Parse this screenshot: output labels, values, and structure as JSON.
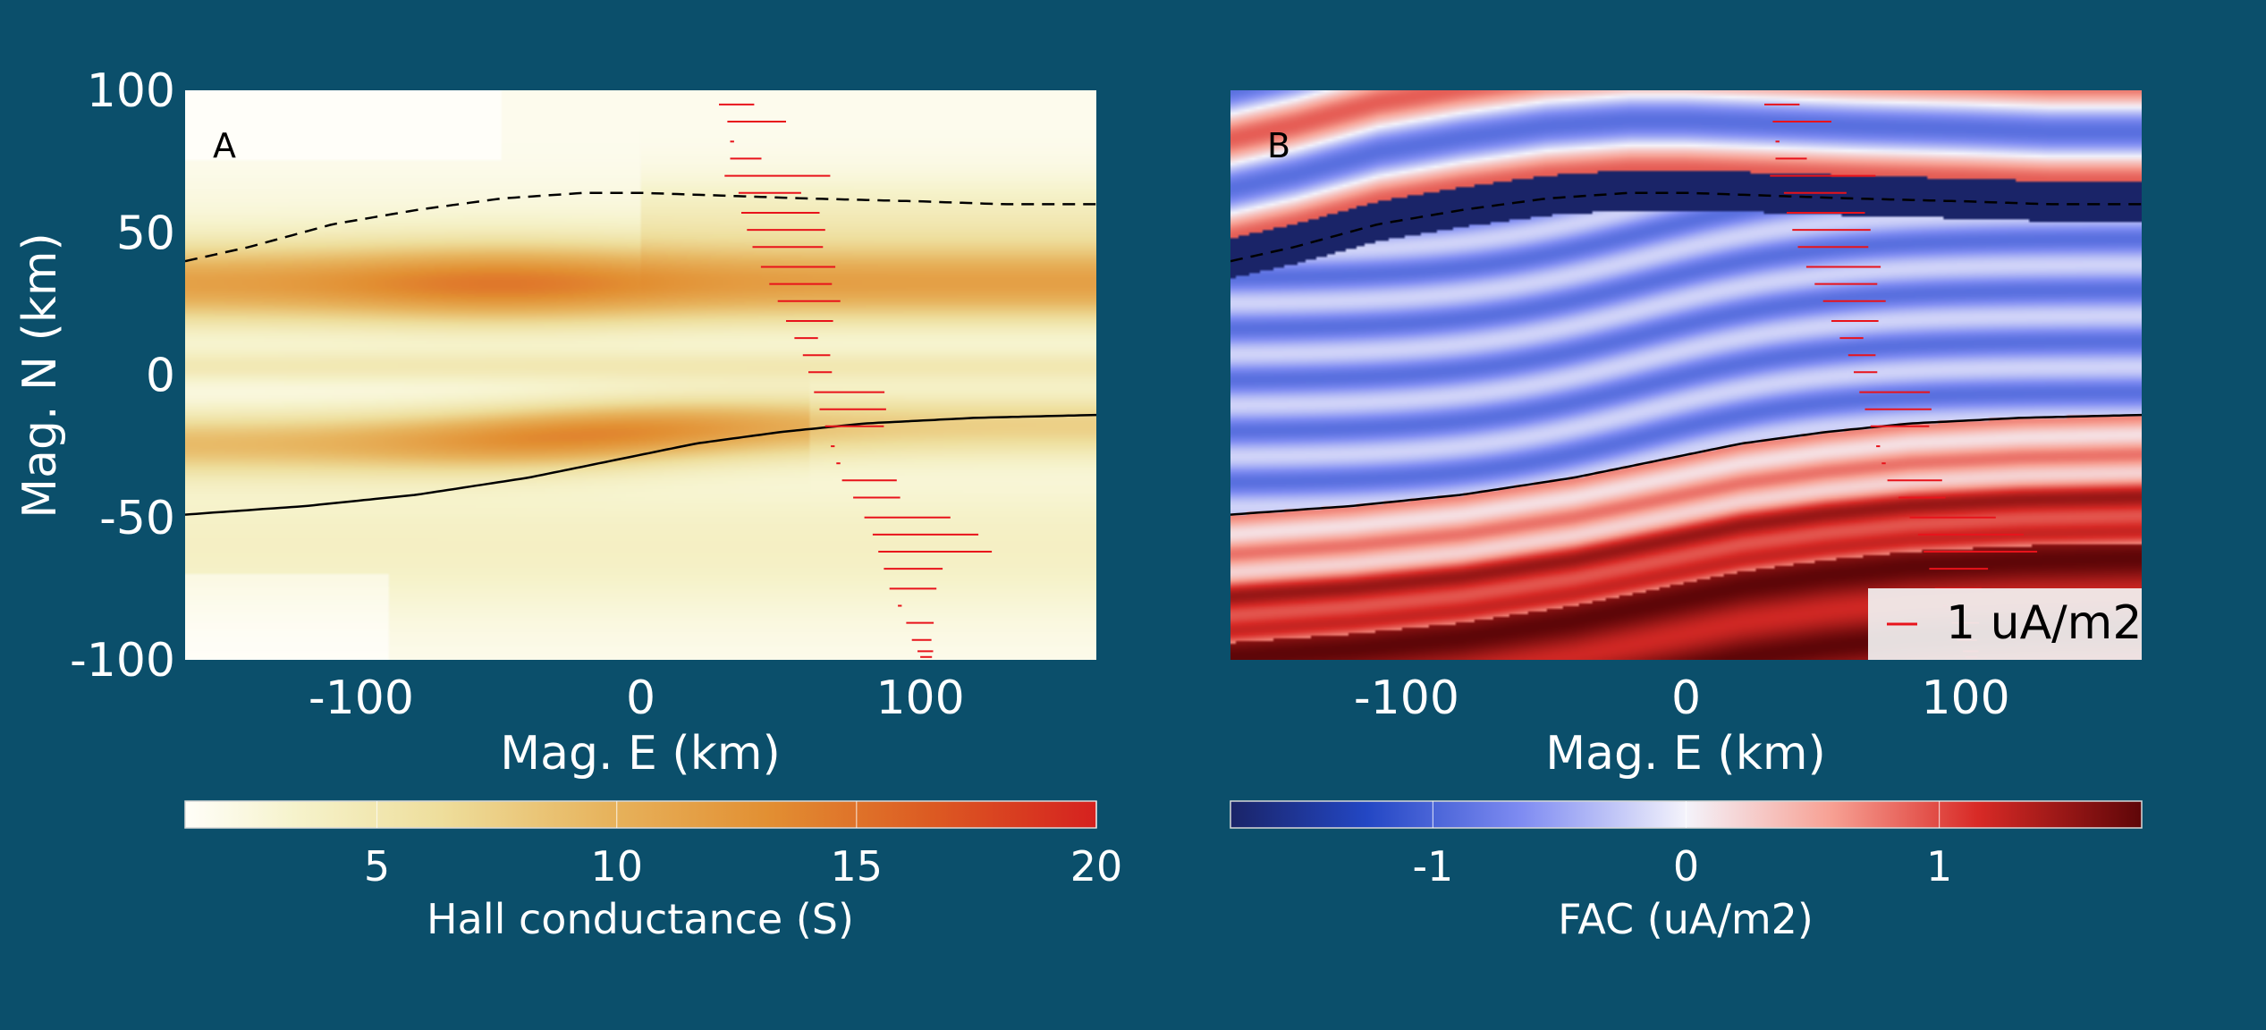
{
  "colors": {
    "background": "#0b4f6b",
    "text": "#ffffff",
    "boundary_line": "#000000",
    "fac_arrow": "#e8131b"
  },
  "chart_data": [
    {
      "type": "heatmap",
      "panel_label": "A",
      "xlabel": "Mag. E (km)",
      "ylabel": "Mag. N (km)",
      "xlim": [
        -163,
        163
      ],
      "ylim": [
        -100,
        100
      ],
      "xticks": [
        -100,
        0,
        100
      ],
      "xtick_labels": [
        "-100",
        "0",
        "100"
      ],
      "yticks": [
        100,
        50,
        0,
        -50,
        -100
      ],
      "ytick_labels": [
        "100",
        "50",
        "0",
        "-50",
        "-100"
      ],
      "colormap": "YlOrRd",
      "colorbar": {
        "label": "Hall conductance (S)",
        "range": [
          1,
          20
        ],
        "ticks": [
          5,
          10,
          15,
          20
        ],
        "tick_labels": [
          "5",
          "10",
          "15",
          "20"
        ]
      },
      "bands": [
        {
          "y_center": 32,
          "width": 14,
          "amplitude": 13,
          "bulge_x": -50
        },
        {
          "y_center": -20,
          "width": 11,
          "amplitude": 12,
          "bulge_x": -20
        },
        {
          "y_center": 3,
          "width": 6,
          "amplitude": 3
        }
      ],
      "dashed_boundary": {
        "x": [
          -163,
          -140,
          -110,
          -80,
          -50,
          -20,
          0,
          30,
          60,
          100,
          130,
          163
        ],
        "y": [
          40,
          45,
          53,
          58,
          62,
          64,
          64,
          63,
          62,
          61,
          60,
          60
        ]
      },
      "solid_boundary": {
        "x": [
          -163,
          -120,
          -80,
          -40,
          -10,
          20,
          50,
          80,
          120,
          163
        ],
        "y": [
          -49,
          -46,
          -42,
          -36,
          -30,
          -24,
          -20,
          -17,
          -15,
          -14
        ]
      }
    },
    {
      "type": "heatmap",
      "panel_label": "B",
      "xlabel": "Mag. E (km)",
      "ylabel": "",
      "xlim": [
        -163,
        163
      ],
      "ylim": [
        -100,
        100
      ],
      "xticks": [
        -100,
        0,
        100
      ],
      "xtick_labels": [
        "-100",
        "0",
        "100"
      ],
      "colormap": "blue-white-red",
      "colorbar": {
        "label": "FAC (uA/m2)",
        "range": [
          -1.8,
          1.8
        ],
        "ticks": [
          -1,
          0,
          1
        ],
        "tick_labels": [
          "-1",
          "0",
          "1"
        ]
      },
      "legend": {
        "label": "1 uA/m2",
        "placement": "lower right"
      },
      "dashed_boundary": {
        "x": [
          -163,
          -140,
          -110,
          -80,
          -50,
          -20,
          0,
          30,
          60,
          100,
          130,
          163
        ],
        "y": [
          40,
          45,
          53,
          58,
          62,
          64,
          64,
          63,
          62,
          61,
          60,
          60
        ]
      },
      "solid_boundary": {
        "x": [
          -163,
          -120,
          -80,
          -40,
          -10,
          20,
          50,
          80,
          120,
          163
        ],
        "y": [
          -49,
          -46,
          -42,
          -36,
          -30,
          -24,
          -20,
          -17,
          -15,
          -14
        ]
      }
    }
  ],
  "fac_track": {
    "x": [
      28,
      31,
      32,
      32,
      30,
      35,
      36,
      38,
      40,
      43,
      46,
      49,
      52,
      55,
      58,
      60,
      62,
      64,
      66,
      68,
      70,
      72,
      76,
      80,
      83,
      85,
      87,
      89,
      92,
      95,
      97,
      99,
      100
    ],
    "y": [
      95,
      89,
      82,
      76,
      70,
      64,
      57,
      51,
      45,
      38,
      32,
      26,
      19,
      13,
      7,
      1,
      -6,
      -12,
      -18,
      -25,
      -31,
      -37,
      -43,
      -50,
      -56,
      -62,
      -68,
      -75,
      -81,
      -87,
      -93,
      -97,
      -99
    ],
    "value": [
      0.45,
      0.75,
      0.05,
      0.4,
      1.35,
      0.8,
      1.0,
      1.0,
      0.9,
      0.95,
      0.8,
      0.8,
      0.6,
      0.3,
      0.35,
      0.3,
      0.9,
      0.85,
      0.75,
      0.05,
      0.05,
      0.7,
      0.6,
      1.1,
      1.35,
      1.45,
      0.75,
      0.6,
      0.05,
      0.35,
      0.25,
      0.2,
      0.15
    ]
  }
}
